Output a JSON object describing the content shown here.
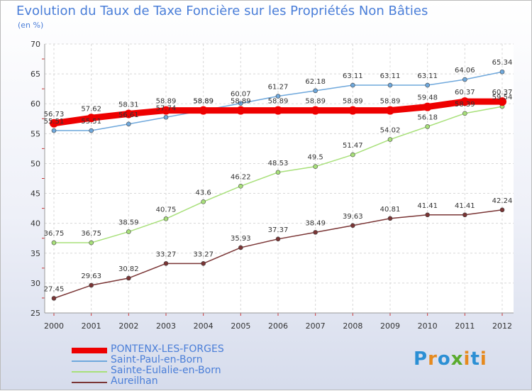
{
  "title": "Evolution du Taux de Taxe Foncière sur les Propriétés Non Bâties",
  "unit_label": "(en %)",
  "logo": {
    "letters": [
      "P",
      "r",
      "o",
      "x",
      "i",
      "t",
      "i"
    ],
    "colors": [
      "#2b8fd4",
      "#e68a1e",
      "#2b8fd4",
      "#5aab2e",
      "#e68a1e",
      "#2b8fd4",
      "#e68a1e"
    ]
  },
  "chart_data": {
    "type": "line",
    "title": "Evolution du Taux de Taxe Foncière sur les Propriétés Non Bâties",
    "ylabel": "(en %)",
    "xlabel": "",
    "x": [
      "2000",
      "2001",
      "2002",
      "2003",
      "2004",
      "2005",
      "2006",
      "2007",
      "2008",
      "2009",
      "2010",
      "2011",
      "2012"
    ],
    "ylim": [
      25,
      70
    ],
    "yticks": [
      "25",
      "30",
      "35",
      "40",
      "45",
      "50",
      "55",
      "60",
      "65",
      "70"
    ],
    "grid": true,
    "legend_position": "bottom-left",
    "series": [
      {
        "name": "PONTENX-LES-FORGES",
        "color": "#ee0000",
        "values": [
          56.73,
          57.62,
          58.31,
          58.89,
          58.89,
          58.89,
          58.89,
          58.89,
          58.89,
          58.89,
          59.48,
          60.37,
          60.37
        ],
        "labels": [
          "56.73",
          "57.62",
          "58.31",
          "58.89",
          "58.89",
          "58.89",
          "58.89",
          "58.89",
          "58.89",
          "58.89",
          "59.48",
          "60.37",
          "60.37"
        ]
      },
      {
        "name": "Saint-Paul-en-Born",
        "color": "#6fa8dc",
        "values": [
          55.51,
          55.51,
          56.61,
          57.74,
          58.89,
          60.07,
          61.27,
          62.18,
          63.11,
          63.11,
          63.11,
          64.06,
          65.34
        ],
        "labels": [
          "55.51",
          "55.51",
          "56.61",
          "57.74",
          "58.89",
          "60.07",
          "61.27",
          "62.18",
          "63.11",
          "63.11",
          "63.11",
          "64.06",
          "65.34"
        ]
      },
      {
        "name": "Sainte-Eulalie-en-Born",
        "color": "#a8e07a",
        "values": [
          36.75,
          36.75,
          38.59,
          40.75,
          43.6,
          46.22,
          48.53,
          49.5,
          51.47,
          54.02,
          56.18,
          58.39,
          59.54
        ],
        "labels": [
          "36.75",
          "36.75",
          "38.59",
          "40.75",
          "43.6",
          "46.22",
          "48.53",
          "49.5",
          "51.47",
          "54.02",
          "56.18",
          "58.39",
          "59.54"
        ]
      },
      {
        "name": "Aureilhan",
        "color": "#7a3535",
        "values": [
          27.45,
          29.63,
          30.82,
          33.27,
          33.27,
          35.93,
          37.37,
          38.49,
          39.63,
          40.81,
          41.41,
          41.41,
          42.24
        ],
        "labels": [
          "27.45",
          "29.63",
          "30.82",
          "33.27",
          "33.27",
          "35.93",
          "37.37",
          "38.49",
          "39.63",
          "40.81",
          "41.41",
          "41.41",
          "42.24"
        ]
      }
    ]
  }
}
